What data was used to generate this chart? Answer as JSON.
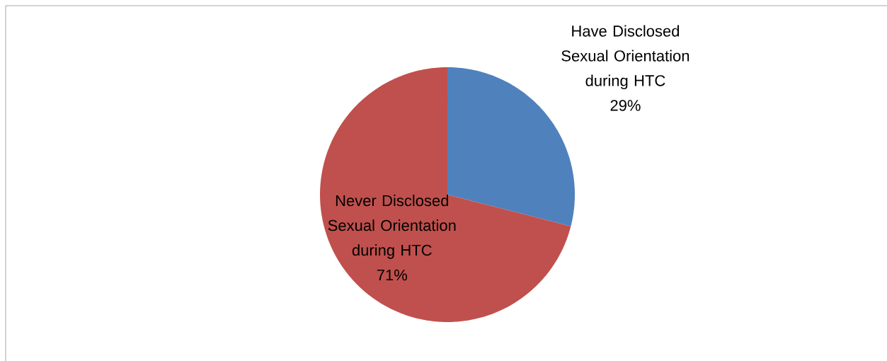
{
  "chart_data": {
    "type": "pie",
    "categories": [
      "Have Disclosed Sexual Orientation during HTC",
      "Never Disclosed Sexual Orientation during HTC"
    ],
    "values": [
      29,
      71
    ],
    "colors": [
      "#4f81bd",
      "#c0504d"
    ],
    "value_labels": [
      "29%",
      "71%"
    ]
  }
}
